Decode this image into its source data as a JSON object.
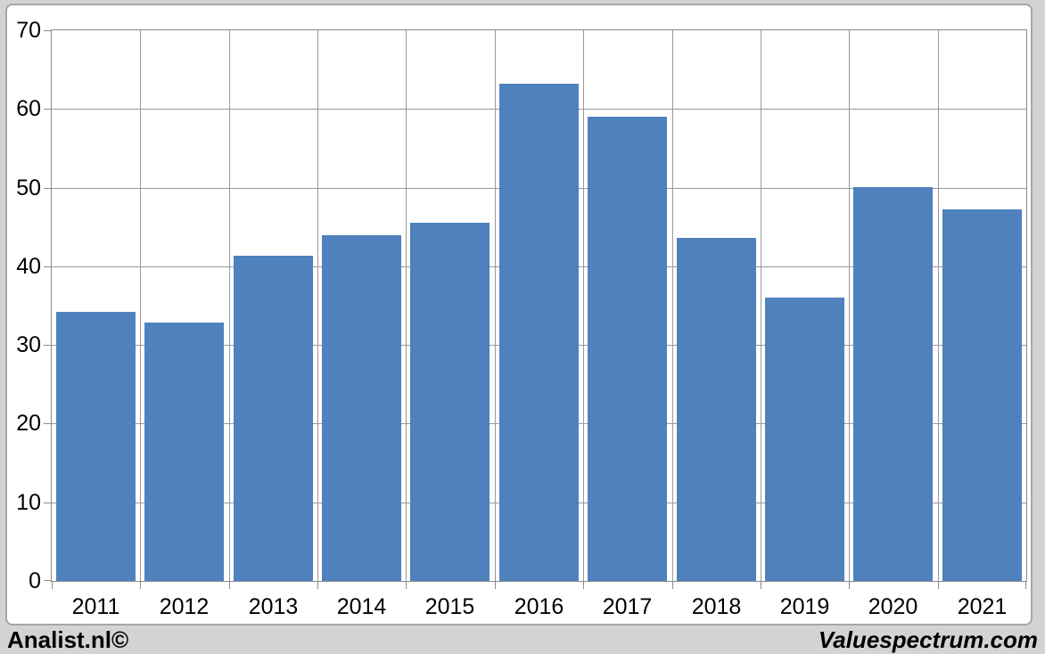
{
  "chart_data": {
    "type": "bar",
    "title": "",
    "xlabel": "",
    "ylabel": "",
    "categories": [
      "2011",
      "2012",
      "2013",
      "2014",
      "2015",
      "2016",
      "2017",
      "2018",
      "2019",
      "2020",
      "2021"
    ],
    "values": [
      34.2,
      32.8,
      41.3,
      43.9,
      45.5,
      63.2,
      59.0,
      43.6,
      36.0,
      50.1,
      47.2
    ],
    "ylim": [
      0,
      70
    ],
    "y_ticks": [
      70,
      60,
      50,
      40,
      30,
      20,
      10,
      0
    ],
    "grid": true,
    "legend_position": "none",
    "bar_color": "#4F81BD"
  },
  "colors": {
    "page_background": "#d3d3d3",
    "chart_background": "#ffffff",
    "frame_border": "#a6a6a6",
    "gridline": "#999999",
    "axis": "#8a8a8a",
    "text": "#000000"
  },
  "footer": {
    "brand_left": "Analist.nl©",
    "brand_right": "Valuespectrum.com"
  }
}
